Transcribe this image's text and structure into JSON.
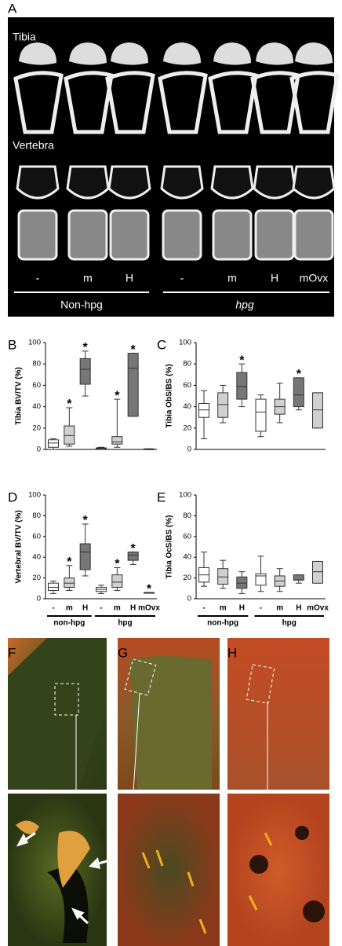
{
  "panel_a": {
    "label": "A",
    "rows": [
      "Tibia",
      "Vertebra"
    ],
    "treatments": [
      "-",
      "m",
      "H",
      "-",
      "m",
      "H",
      "mOvx"
    ],
    "groups": [
      "Non-hpg",
      "hpg"
    ]
  },
  "chart_data": [
    {
      "type": "box",
      "panel": "B",
      "y_label": "Tibia BV/TV (%)",
      "categories": [
        null,
        null,
        null,
        null,
        null,
        null,
        null
      ],
      "min": [
        0,
        3,
        50,
        0,
        2,
        31,
        0.5
      ],
      "q1": [
        2,
        5,
        61,
        0.5,
        5,
        31,
        0.5
      ],
      "median": [
        6,
        13,
        75,
        1,
        7,
        76,
        0.5
      ],
      "q3": [
        9,
        22,
        85,
        1.5,
        12,
        90,
        0.5
      ],
      "max": [
        10,
        39,
        92,
        2,
        47,
        90,
        0.5
      ],
      "colors": [
        "#ffffff",
        "#d0d0d0",
        "#777777",
        "#ffffff",
        "#d0d0d0",
        "#777777",
        "#d0d0d0"
      ],
      "significance": [
        null,
        "*",
        "*",
        null,
        "*",
        "*",
        null
      ],
      "ylim": [
        0,
        100
      ],
      "yticks": [
        0,
        20,
        40,
        60,
        80,
        100
      ]
    },
    {
      "type": "box",
      "panel": "C",
      "y_label": "Tibia ObS/BS (%)",
      "categories": [
        null,
        null,
        null,
        null,
        null,
        null,
        null
      ],
      "min": [
        10,
        25,
        40,
        12,
        25,
        37,
        20
      ],
      "q1": [
        30,
        30,
        47,
        17,
        33,
        40,
        20
      ],
      "median": [
        37,
        42,
        59,
        35,
        40,
        51,
        37
      ],
      "q3": [
        43,
        53,
        72,
        47,
        47,
        67,
        53
      ],
      "max": [
        55,
        60,
        80,
        51,
        62,
        67,
        53
      ],
      "colors": [
        "#ffffff",
        "#d0d0d0",
        "#777777",
        "#ffffff",
        "#d0d0d0",
        "#777777",
        "#d0d0d0"
      ],
      "significance": [
        null,
        null,
        "*",
        null,
        null,
        "*",
        null
      ],
      "ylim": [
        0,
        100
      ],
      "yticks": [
        0,
        20,
        40,
        60,
        80,
        100
      ]
    },
    {
      "type": "box",
      "panel": "D",
      "y_label": "Vertebral BV/TV (%)",
      "categories": [
        "-",
        "m",
        "H",
        "-",
        "m",
        "H",
        "mOvx"
      ],
      "groups": [
        "non-hpg",
        "hpg"
      ],
      "min": [
        5,
        8,
        22,
        5,
        8,
        33,
        6
      ],
      "q1": [
        8,
        11,
        28,
        7,
        11,
        37,
        6
      ],
      "median": [
        11,
        15,
        45,
        9,
        16,
        42,
        6
      ],
      "q3": [
        15,
        20,
        53,
        11,
        23,
        45,
        6
      ],
      "max": [
        17,
        32,
        72,
        13,
        30,
        45,
        6
      ],
      "colors": [
        "#ffffff",
        "#d0d0d0",
        "#777777",
        "#ffffff",
        "#d0d0d0",
        "#777777",
        "#d0d0d0"
      ],
      "significance": [
        null,
        "*",
        "*",
        null,
        "*",
        "*",
        "*"
      ],
      "ylim": [
        0,
        100
      ],
      "yticks": [
        0,
        20,
        40,
        60,
        80,
        100
      ]
    },
    {
      "type": "box",
      "panel": "E",
      "y_label": "Tibia OcS/BS (%)",
      "categories": [
        "-",
        "m",
        "H",
        "-",
        "m",
        "H",
        "mOvx"
      ],
      "groups": [
        "non-hpg",
        "hpg"
      ],
      "min": [
        12,
        10,
        5,
        7,
        7,
        15,
        15
      ],
      "q1": [
        16,
        14,
        10,
        13,
        12,
        18,
        15
      ],
      "median": [
        23,
        21,
        15,
        22,
        17,
        18,
        26
      ],
      "q3": [
        30,
        29,
        21,
        24,
        22,
        23,
        36
      ],
      "max": [
        45,
        37,
        26,
        41,
        29,
        23,
        36
      ],
      "colors": [
        "#ffffff",
        "#d0d0d0",
        "#777777",
        "#ffffff",
        "#d0d0d0",
        "#777777",
        "#d0d0d0"
      ],
      "significance": [
        null,
        null,
        null,
        null,
        null,
        null,
        null
      ],
      "ylim": [
        0,
        100
      ],
      "yticks": [
        0,
        20,
        40,
        60,
        80,
        100
      ]
    }
  ],
  "micrographs": {
    "labels": [
      "F",
      "G",
      "H"
    ]
  }
}
